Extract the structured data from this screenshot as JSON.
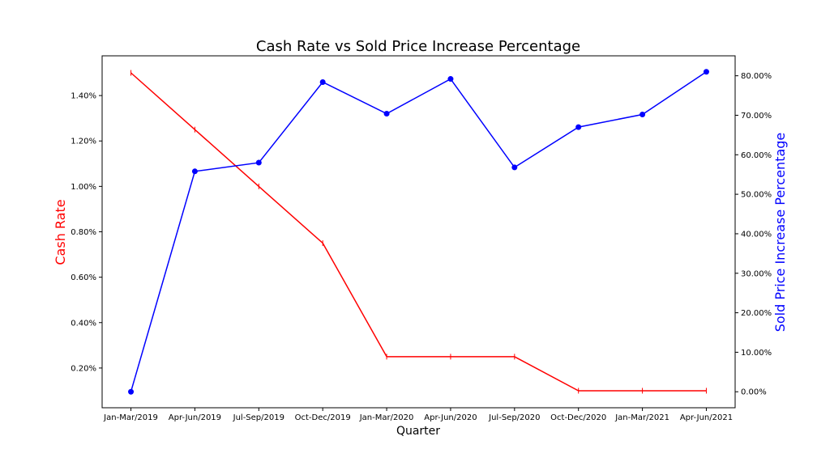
{
  "chart_data": {
    "type": "line",
    "title": "Cash Rate vs Sold Price Increase Percentage",
    "xlabel": "Quarter",
    "categories": [
      "Jan-Mar/2019",
      "Apr-Jun/2019",
      "Jul-Sep/2019",
      "Oct-Dec/2019",
      "Jan-Mar/2020",
      "Apr-Jun/2020",
      "Jul-Sep/2020",
      "Oct-Dec/2020",
      "Jan-Mar/2021",
      "Apr-Jun/2021"
    ],
    "left_axis": {
      "label": "Cash Rate",
      "color": "#ff0000",
      "ylim": [
        0.025,
        1.575
      ],
      "ticks": [
        0.2,
        0.4,
        0.6,
        0.8,
        1.0,
        1.2,
        1.4
      ],
      "tick_labels": [
        "0.20%",
        "0.40%",
        "0.60%",
        "0.80%",
        "1.00%",
        "1.20%",
        "1.40%"
      ]
    },
    "right_axis": {
      "label": "Sold Price Increase Percentage",
      "color": "#0000ff",
      "ylim": [
        -4.05,
        85.05
      ],
      "ticks": [
        0,
        10,
        20,
        30,
        40,
        50,
        60,
        70,
        80
      ],
      "tick_labels": [
        "0.00%",
        "10.00%",
        "20.00%",
        "30.00%",
        "40.00%",
        "50.00%",
        "60.00%",
        "70.00%",
        "80.00%"
      ]
    },
    "series": [
      {
        "name": "Cash Rate",
        "axis": "left",
        "color": "#ff0000",
        "marker": "tick",
        "values": [
          1.5,
          1.25,
          1.0,
          0.75,
          0.25,
          0.25,
          0.25,
          0.1,
          0.1,
          0.1
        ]
      },
      {
        "name": "Sold Price Increase Percentage",
        "axis": "right",
        "color": "#0000ff",
        "marker": "circle",
        "values": [
          0.0,
          55.8,
          58.0,
          78.4,
          70.4,
          79.2,
          56.8,
          67.0,
          70.2,
          81.0
        ]
      }
    ]
  }
}
